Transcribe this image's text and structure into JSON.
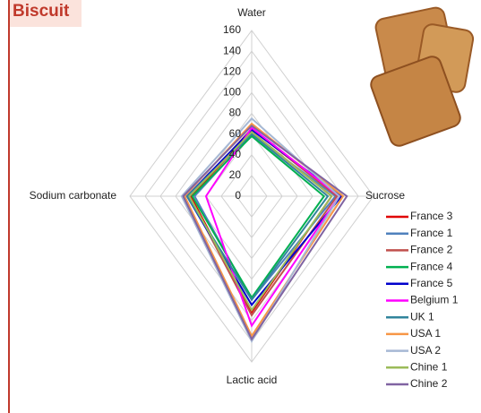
{
  "chart_data": {
    "type": "radar",
    "title": "Biscuit",
    "categories": [
      "Water",
      "Sucrose",
      "Lactic acid",
      "Sodium carbonate"
    ],
    "ylim": [
      0,
      160
    ],
    "yticks": [
      0,
      20,
      40,
      60,
      80,
      100,
      120,
      140,
      160
    ],
    "grid": true,
    "series": [
      {
        "name": "France 3",
        "color": "#e00000",
        "values": [
          62,
          105,
          112,
          80
        ]
      },
      {
        "name": "France 1",
        "color": "#4f81bd",
        "values": [
          60,
          110,
          100,
          75
        ]
      },
      {
        "name": "France 2",
        "color": "#c0504d",
        "values": [
          65,
          112,
          115,
          82
        ]
      },
      {
        "name": "France 4",
        "color": "#00b050",
        "values": [
          58,
          95,
          98,
          78
        ]
      },
      {
        "name": "France 5",
        "color": "#0000cc",
        "values": [
          64,
          118,
          105,
          85
        ]
      },
      {
        "name": "Belgium 1",
        "color": "#ff00ff",
        "values": [
          66,
          115,
          125,
          60
        ]
      },
      {
        "name": "UK 1",
        "color": "#31859c",
        "values": [
          60,
          100,
          100,
          85
        ]
      },
      {
        "name": "USA 1",
        "color": "#f79646",
        "values": [
          70,
          120,
          135,
          88
        ]
      },
      {
        "name": "USA 2",
        "color": "#a6b8d4",
        "values": [
          75,
          115,
          140,
          92
        ]
      },
      {
        "name": "Chine 1",
        "color": "#9bbb59",
        "values": [
          62,
          105,
          110,
          82
        ]
      },
      {
        "name": "Chine 2",
        "color": "#8064a2",
        "values": [
          68,
          125,
          138,
          90
        ]
      }
    ]
  }
}
